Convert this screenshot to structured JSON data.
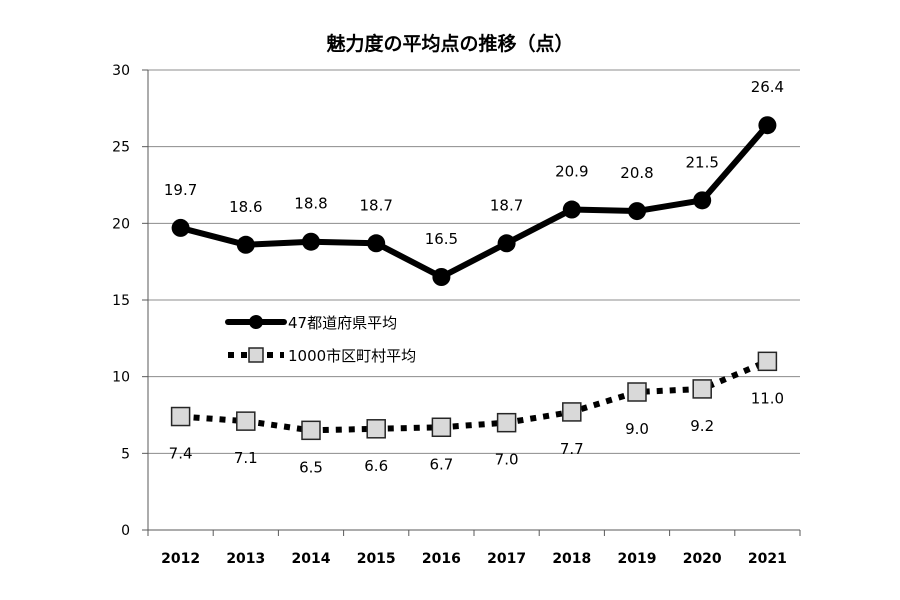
{
  "chart_data": {
    "type": "line",
    "title": "魅力度の平均点の推移（点）",
    "xlabel": "",
    "ylabel": "",
    "categories": [
      "2012",
      "2013",
      "2014",
      "2015",
      "2016",
      "2017",
      "2018",
      "2019",
      "2020",
      "2021"
    ],
    "ylim": [
      0,
      30
    ],
    "yticks": [
      0,
      5,
      10,
      15,
      20,
      25,
      30
    ],
    "grid": true,
    "legend_position": "middle-left",
    "series": [
      {
        "name": "47都道府県平均",
        "values": [
          19.7,
          18.6,
          18.8,
          18.7,
          16.5,
          18.7,
          20.9,
          20.8,
          21.5,
          26.4
        ],
        "labels": [
          "19.7",
          "18.6",
          "18.8",
          "18.7",
          "16.5",
          "18.7",
          "20.9",
          "20.8",
          "21.5",
          "26.4"
        ],
        "line_style": "solid",
        "marker": "circle",
        "color": "#000000"
      },
      {
        "name": "1000市区町村平均",
        "values": [
          7.4,
          7.1,
          6.5,
          6.6,
          6.7,
          7.0,
          7.7,
          9.0,
          9.2,
          11.0
        ],
        "labels": [
          "7.4",
          "7.1",
          "6.5",
          "6.6",
          "6.7",
          "7.0",
          "7.7",
          "9.0",
          "9.2",
          "11.0"
        ],
        "line_style": "dotted",
        "marker": "square",
        "color": "#000000",
        "marker_fill": "#d9d9d9"
      }
    ]
  }
}
